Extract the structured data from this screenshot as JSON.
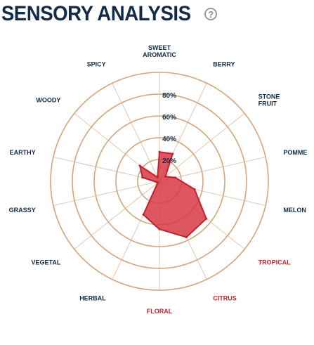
{
  "header": {
    "title": "SENSORY ANALYSIS",
    "help_icon": "question-circle-icon"
  },
  "colors": {
    "title": "#142b47",
    "label_default": "#142b47",
    "label_highlight": "#c8232c",
    "grid": "#d4a57a",
    "fill": "#d93a45",
    "stroke": "#c22030",
    "help_icon": "#9a9a9a"
  },
  "chart_data": {
    "type": "radar",
    "title": "SENSORY ANALYSIS",
    "rlim": [
      0,
      100
    ],
    "ring_values": [
      20,
      40,
      60,
      80,
      100
    ],
    "tick_labels": [
      "20%",
      "40%",
      "60%",
      "80%"
    ],
    "axes": [
      {
        "label": "SWEET AROMATIC",
        "lines": [
          "SWEET",
          "AROMATIC"
        ],
        "highlight": false
      },
      {
        "label": "BERRY",
        "lines": [
          "BERRY"
        ],
        "highlight": false
      },
      {
        "label": "STONE FRUIT",
        "lines": [
          "STONE",
          "FRUIT"
        ],
        "highlight": false
      },
      {
        "label": "POMME",
        "lines": [
          "POMME"
        ],
        "highlight": false
      },
      {
        "label": "MELON",
        "lines": [
          "MELON"
        ],
        "highlight": false
      },
      {
        "label": "TROPICAL",
        "lines": [
          "TROPICAL"
        ],
        "highlight": true
      },
      {
        "label": "CITRUS",
        "lines": [
          "CITRUS"
        ],
        "highlight": true
      },
      {
        "label": "FLORAL",
        "lines": [
          "FLORAL"
        ],
        "highlight": true
      },
      {
        "label": "HERBAL",
        "lines": [
          "HERBAL"
        ],
        "highlight": false
      },
      {
        "label": "VEGETAL",
        "lines": [
          "VEGETAL"
        ],
        "highlight": false
      },
      {
        "label": "GRASSY",
        "lines": [
          "GRASSY"
        ],
        "highlight": false
      },
      {
        "label": "EARTHY",
        "lines": [
          "EARTHY"
        ],
        "highlight": false
      },
      {
        "label": "WOODY",
        "lines": [
          "WOODY"
        ],
        "highlight": false
      },
      {
        "label": "SPICY",
        "lines": [
          "SPICY"
        ],
        "highlight": false
      }
    ],
    "values": [
      27,
      28,
      7,
      15,
      33,
      55,
      57,
      44,
      34,
      2,
      3,
      16,
      23,
      4
    ]
  }
}
